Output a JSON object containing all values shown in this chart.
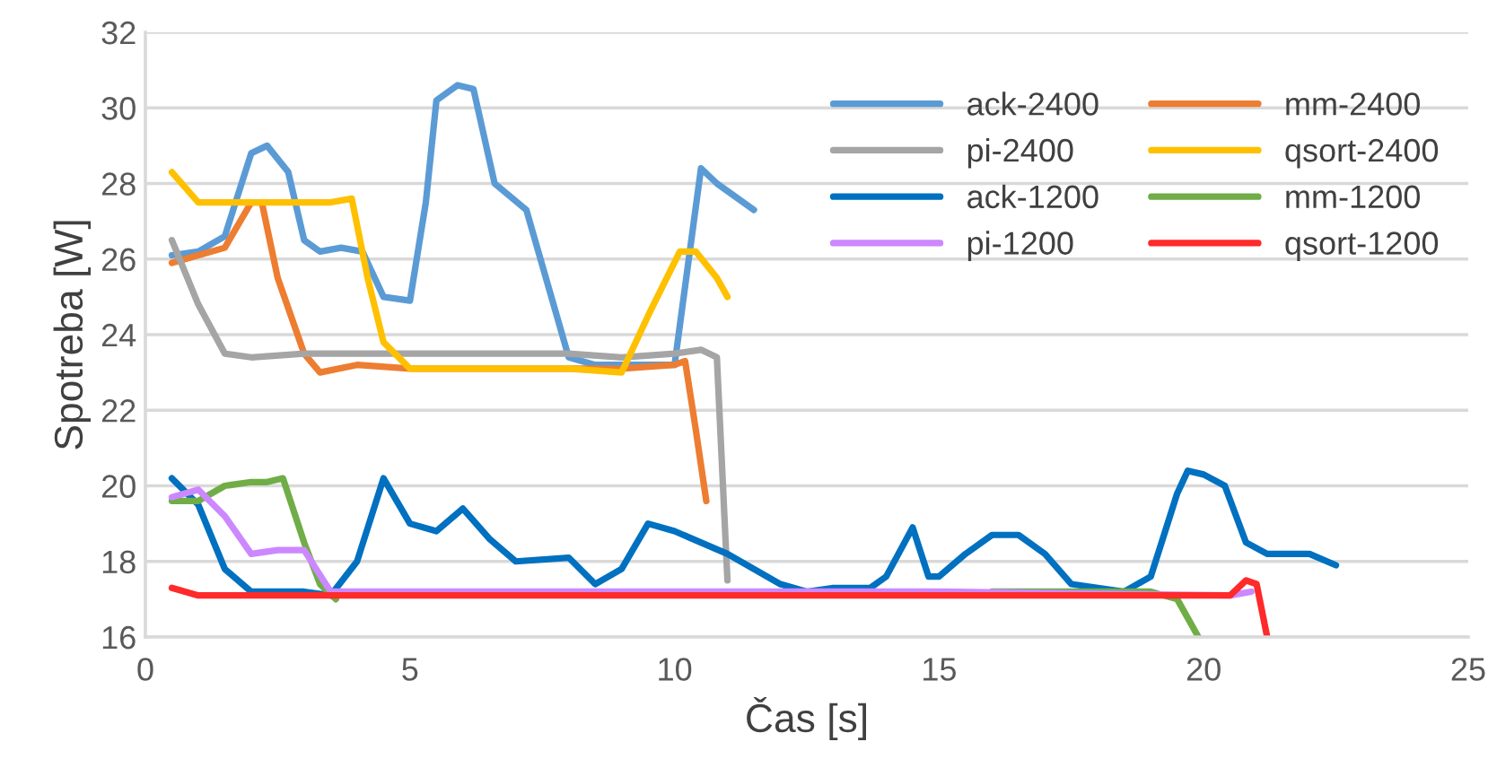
{
  "chart_data": {
    "type": "line",
    "xlabel": "Čas [s]",
    "ylabel": "Spotreba [W]",
    "xlim": [
      0,
      25
    ],
    "xticks": [
      0,
      5,
      10,
      15,
      20,
      25
    ],
    "ylim": [
      16,
      32
    ],
    "yticks": [
      16,
      18,
      20,
      22,
      24,
      26,
      28,
      30,
      32
    ],
    "grid": "y",
    "legend": "top right",
    "marker": "none",
    "line_style": "solid",
    "series": [
      {
        "name": "ack-2400",
        "color": "#5b9bd5",
        "x": [
          0.5,
          1,
          1.5,
          2,
          2.3,
          2.7,
          3,
          3.3,
          3.7,
          4.1,
          4.5,
          5,
          5.3,
          5.5,
          5.9,
          6.2,
          6.6,
          7.2,
          8,
          8.5,
          9,
          10,
          10.5,
          10.8,
          11.5
        ],
        "values": [
          26.1,
          26.2,
          26.6,
          28.8,
          29.0,
          28.3,
          26.5,
          26.2,
          26.3,
          26.2,
          25.0,
          24.9,
          27.5,
          30.2,
          30.6,
          30.5,
          28.0,
          27.3,
          23.4,
          23.2,
          23.2,
          23.2,
          28.4,
          28.0,
          27.3
        ]
      },
      {
        "name": "mm-2400",
        "color": "#ed7d31",
        "x": [
          0.5,
          1,
          1.5,
          2,
          2.2,
          2.5,
          3,
          3.3,
          4,
          5,
          7,
          9,
          10,
          10.2,
          10.4,
          10.6
        ],
        "values": [
          25.9,
          26.1,
          26.3,
          27.5,
          27.5,
          25.5,
          23.5,
          23.0,
          23.2,
          23.1,
          23.1,
          23.1,
          23.2,
          23.3,
          21.5,
          19.6
        ]
      },
      {
        "name": "pi-2400",
        "color": "#a5a5a5",
        "x": [
          0.5,
          1,
          1.5,
          2,
          3,
          5,
          6,
          8,
          9,
          10,
          10.5,
          10.8,
          11
        ],
        "values": [
          26.5,
          24.8,
          23.5,
          23.4,
          23.5,
          23.5,
          23.5,
          23.5,
          23.4,
          23.5,
          23.6,
          23.4,
          17.5
        ]
      },
      {
        "name": "qsort-2400",
        "color": "#ffc000",
        "x": [
          0.5,
          1,
          1.5,
          3,
          3.5,
          3.9,
          4.2,
          4.5,
          5,
          6,
          8,
          9,
          9.5,
          10.1,
          10.4,
          10.8,
          11
        ],
        "values": [
          28.3,
          27.5,
          27.5,
          27.5,
          27.5,
          27.6,
          25.5,
          23.8,
          23.1,
          23.1,
          23.1,
          23.0,
          24.5,
          26.2,
          26.2,
          25.5,
          25.0
        ]
      },
      {
        "name": "ack-1200",
        "color": "#0070c0",
        "x": [
          0.5,
          1,
          1.5,
          2,
          3,
          3.5,
          4,
          4.5,
          5,
          5.5,
          6,
          6.5,
          7,
          8,
          8.5,
          9,
          9.5,
          10,
          11,
          12,
          12.5,
          13,
          13.7,
          14,
          14.5,
          14.8,
          15,
          15.5,
          16,
          16.5,
          17,
          17.5,
          18.5,
          19,
          19.5,
          19.7,
          20,
          20.4,
          20.8,
          21.2,
          22,
          22.5
        ],
        "values": [
          20.2,
          19.5,
          17.8,
          17.2,
          17.2,
          17.1,
          18.0,
          20.2,
          19.0,
          18.8,
          19.4,
          18.6,
          18.0,
          18.1,
          17.4,
          17.8,
          19.0,
          18.8,
          18.2,
          17.4,
          17.2,
          17.3,
          17.3,
          17.6,
          18.9,
          17.6,
          17.6,
          18.2,
          18.7,
          18.7,
          18.2,
          17.4,
          17.2,
          17.6,
          19.8,
          20.4,
          20.3,
          20.0,
          18.5,
          18.2,
          18.2,
          17.9
        ]
      },
      {
        "name": "mm-1200",
        "color": "#70ad47",
        "x": [
          0.5,
          1,
          1.5,
          2,
          2.3,
          2.6,
          3,
          3.3,
          3.6,
          4,
          8,
          12,
          16,
          19,
          19.5,
          19.9
        ],
        "values": [
          19.6,
          19.6,
          20.0,
          20.1,
          20.1,
          20.2,
          18.5,
          17.4,
          17.0,
          null,
          null,
          null,
          17.2,
          17.2,
          17.0,
          16.0
        ]
      },
      {
        "name": "pi-1200",
        "color": "#cc88ff",
        "x": [
          0.5,
          1,
          1.5,
          2,
          2.5,
          3,
          3.5,
          5,
          10,
          15,
          20.5,
          20.9
        ],
        "values": [
          19.7,
          19.9,
          19.2,
          18.2,
          18.3,
          18.3,
          17.2,
          17.2,
          17.2,
          17.2,
          17.1,
          17.2
        ]
      },
      {
        "name": "qsort-1200",
        "color": "#ff2a2a",
        "x": [
          0.5,
          1,
          2,
          5,
          10,
          15,
          20.5,
          20.8,
          21.0,
          21.2
        ],
        "values": [
          17.3,
          17.1,
          17.1,
          17.1,
          17.1,
          17.1,
          17.1,
          17.5,
          17.4,
          16.0
        ]
      }
    ]
  }
}
